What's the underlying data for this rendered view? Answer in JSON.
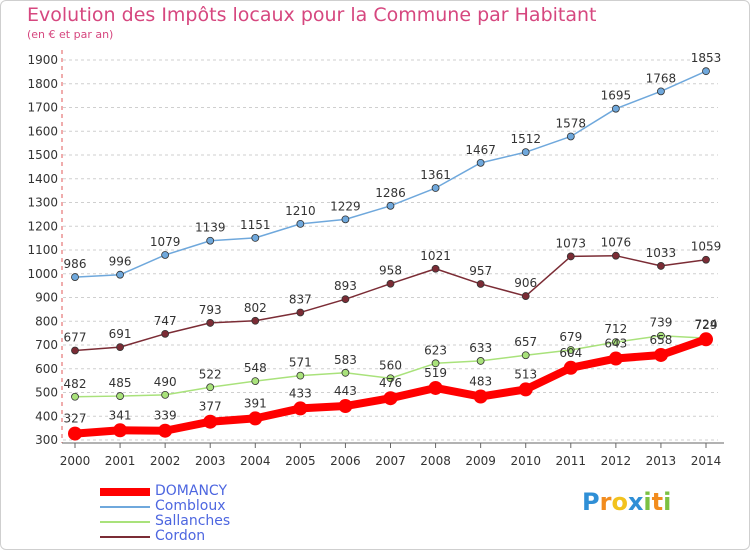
{
  "chart_data": {
    "type": "line",
    "title": "Evolution des Impôts locaux pour la Commune par Habitant",
    "subtitle": "(en € et par an)",
    "x": [
      "2000",
      "2001",
      "2002",
      "2003",
      "2004",
      "2005",
      "2006",
      "2007",
      "2008",
      "2009",
      "2010",
      "2011",
      "2012",
      "2013",
      "2014"
    ],
    "yticks": [
      "300",
      "400",
      "500",
      "600",
      "700",
      "800",
      "900",
      "1000",
      "1100",
      "1200",
      "1300",
      "1400",
      "1500",
      "1600",
      "1700",
      "1800",
      "1900"
    ],
    "ylim": [
      300,
      1900
    ],
    "grid": "horizontal-dashed",
    "legend_position": "bottom-left",
    "series": [
      {
        "name": "DOMANCY",
        "color": "#ff0000",
        "values": [
          327,
          341,
          339,
          377,
          391,
          433,
          443,
          476,
          519,
          483,
          513,
          604,
          643,
          658,
          724
        ]
      },
      {
        "name": "Combloux",
        "color": "#6fa8dc",
        "values": [
          986,
          996,
          1079,
          1139,
          1151,
          1210,
          1229,
          1286,
          1361,
          1467,
          1512,
          1578,
          1695,
          1768,
          1853
        ]
      },
      {
        "name": "Sallanches",
        "color": "#a9e27b",
        "values": [
          482,
          485,
          490,
          522,
          548,
          571,
          583,
          560,
          623,
          633,
          657,
          679,
          712,
          739,
          729
        ]
      },
      {
        "name": "Cordon",
        "color": "#7b2c35",
        "values": [
          677,
          691,
          747,
          793,
          802,
          837,
          893,
          958,
          1021,
          957,
          906,
          1073,
          1076,
          1033,
          1059
        ]
      }
    ]
  },
  "logo": {
    "letters": [
      "P",
      "r",
      "o",
      "x",
      "i",
      "t",
      "i"
    ],
    "colors": [
      "#2f8fd6",
      "#f28c1e",
      "#f2c21e",
      "#2f8fd6",
      "#7bc142",
      "#f28c1e",
      "#7bc142"
    ]
  }
}
